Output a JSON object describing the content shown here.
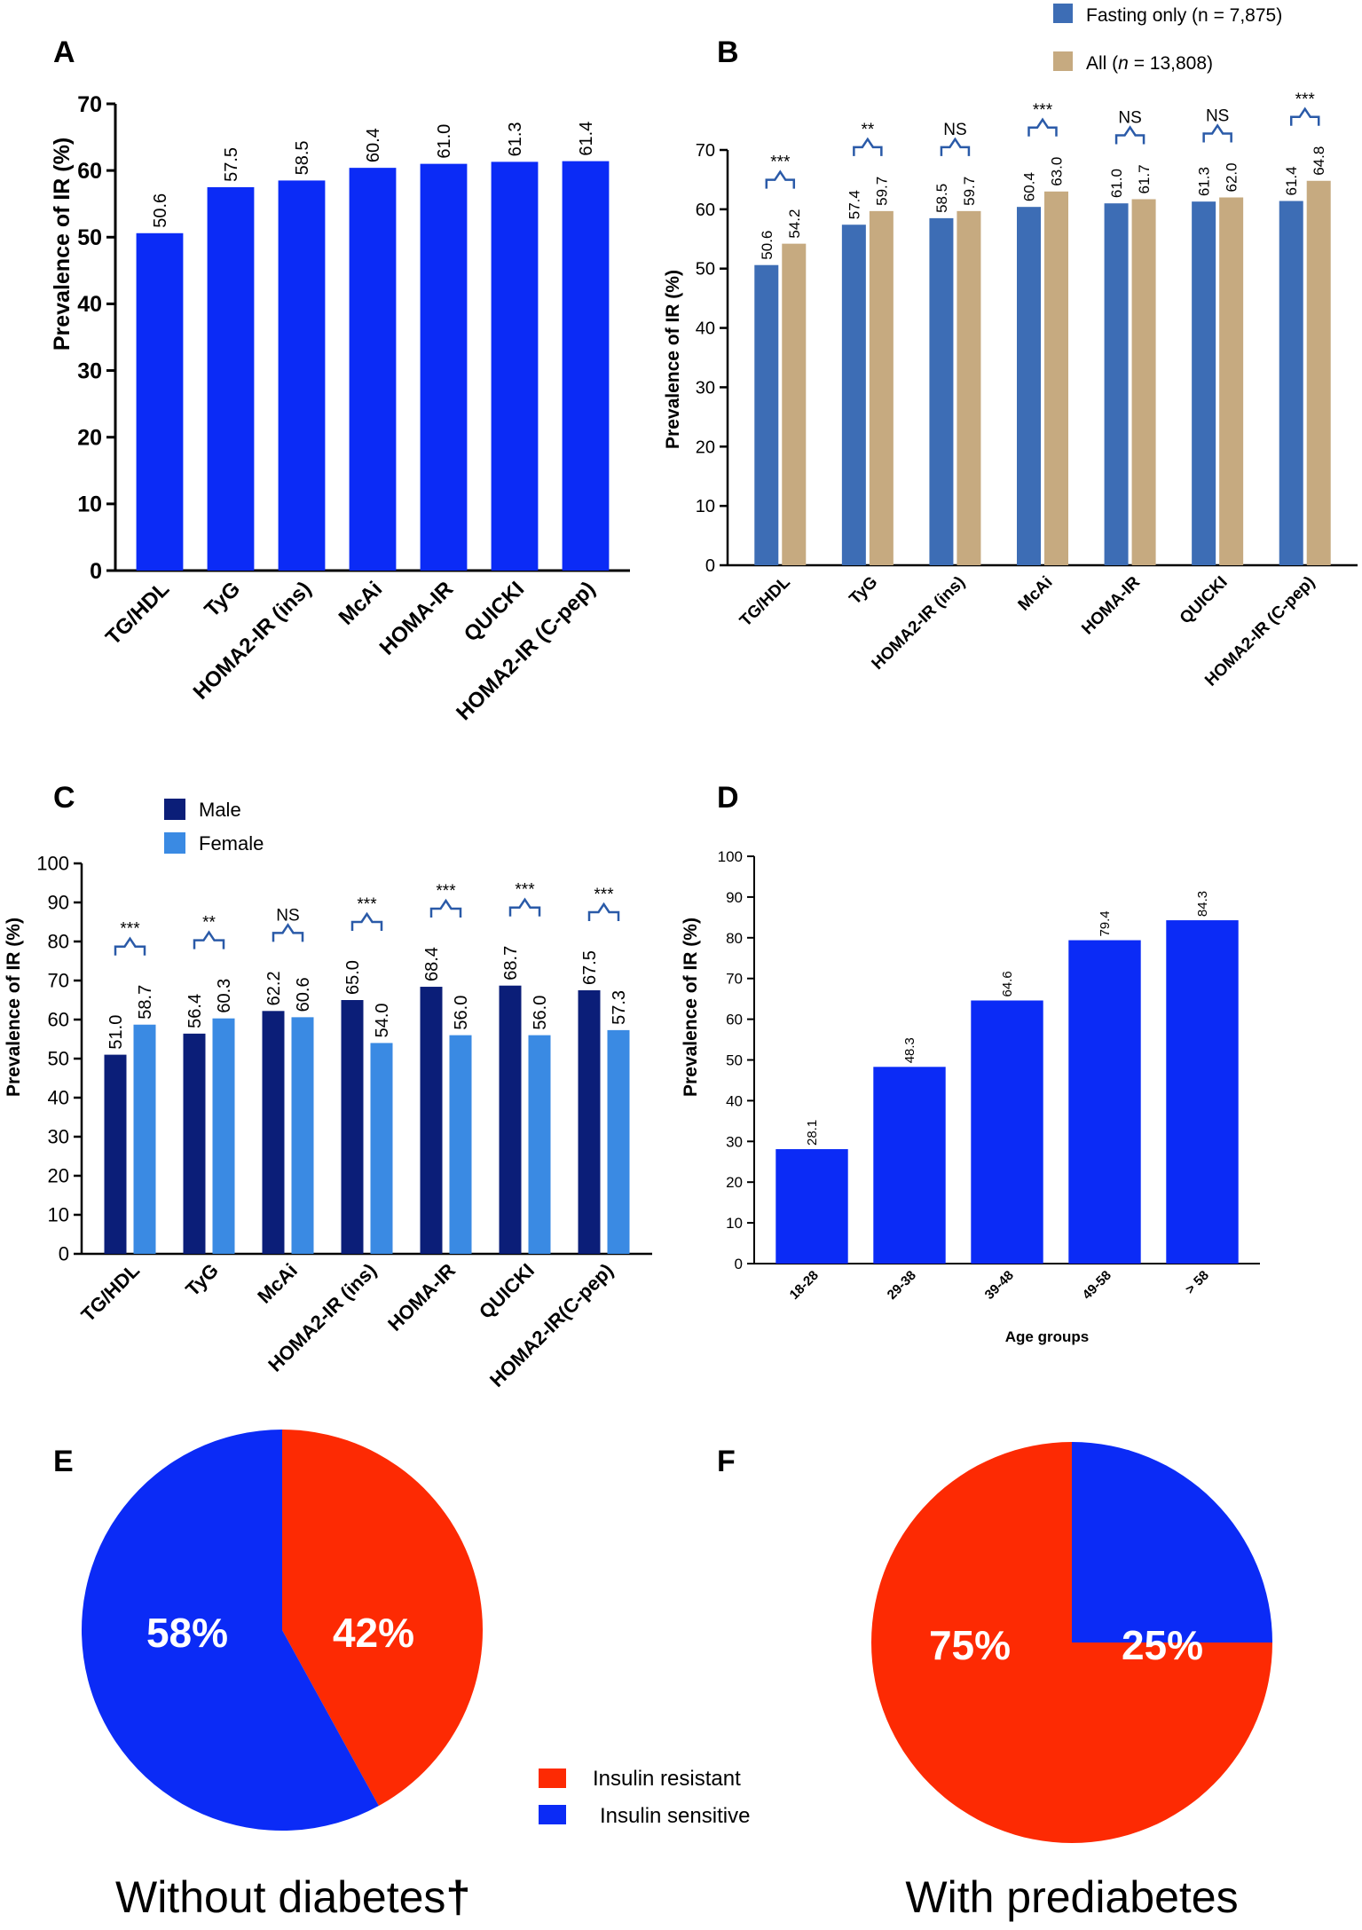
{
  "colors": {
    "blue": "#0b2bf6",
    "steel": "#3d6db5",
    "tan": "#c6aa80",
    "navy": "#0b1e78",
    "lightblue": "#3a8ae3",
    "red": "#fd2a03",
    "bracket": "#2a5aa8"
  },
  "chart_data": [
    {
      "id": "A",
      "panel_label": "A",
      "type": "bar",
      "ylabel": "Prevalence of IR  (%)",
      "ylim": [
        0,
        70
      ],
      "yticks": [
        0,
        10,
        20,
        30,
        40,
        50,
        60,
        70
      ],
      "categories": [
        "TG/HDL",
        "TyG",
        "HOMA2-IR (ins)",
        "McAi",
        "HOMA-IR",
        "QUICKI",
        "HOMA2-IR (C-pep)"
      ],
      "values": [
        50.6,
        57.5,
        58.5,
        60.4,
        61.0,
        61.3,
        61.4
      ],
      "value_labels": [
        "50.6",
        "57.5",
        "58.5",
        "60.4",
        "61.0",
        "61.3",
        "61.4"
      ]
    },
    {
      "id": "B",
      "panel_label": "B",
      "type": "bar",
      "ylabel": "Prevalence of IR (%)",
      "ylim": [
        0,
        70
      ],
      "yticks": [
        0,
        10,
        20,
        30,
        40,
        50,
        60,
        70
      ],
      "categories": [
        "TG/HDL",
        "TyG",
        "HOMA2-IR (ins)",
        "McAi",
        "HOMA-IR",
        "QUICKI",
        "HOMA2-IR (C-pep)"
      ],
      "legend": [
        "Fasting only (n = 7,875)",
        "All"
      ],
      "legend_all_parts": [
        "All  (",
        "n",
        " = 13,808)"
      ],
      "series": [
        {
          "name": "Fasting only (n = 7,875)",
          "values": [
            50.6,
            57.4,
            58.5,
            60.4,
            61.0,
            61.3,
            61.4
          ],
          "labels": [
            "50.6",
            "57.4",
            "58.5",
            "60.4",
            "61.0",
            "61.3",
            "61.4"
          ]
        },
        {
          "name": "All (n = 13,808)",
          "values": [
            54.2,
            59.7,
            59.7,
            63.0,
            61.7,
            62.0,
            64.8
          ],
          "labels": [
            "54.2",
            "59.7",
            "59.7",
            "63.0",
            "61.7",
            "62.0",
            "64.8"
          ]
        }
      ],
      "significance": [
        "***",
        "**",
        "NS",
        "***",
        "NS",
        "NS",
        "***"
      ]
    },
    {
      "id": "C",
      "panel_label": "C",
      "type": "bar",
      "ylabel": "Prevalence of IR (%)",
      "ylim": [
        0,
        100
      ],
      "yticks": [
        0,
        10,
        20,
        30,
        40,
        50,
        60,
        70,
        80,
        90,
        100
      ],
      "categories": [
        "TG/HDL",
        "TyG",
        "McAi",
        "HOMA2-IR (ins)",
        "HOMA-IR",
        "QUICKI",
        "HOMA2-IR(C-pep)"
      ],
      "legend": [
        "Male",
        "Female"
      ],
      "series": [
        {
          "name": "Male",
          "values": [
            51.0,
            56.4,
            62.2,
            65.0,
            68.4,
            68.7,
            67.5
          ],
          "labels": [
            "51.0",
            "56.4",
            "62.2",
            "65.0",
            "68.4",
            "68.7",
            "67.5"
          ]
        },
        {
          "name": "Female",
          "values": [
            58.7,
            60.3,
            60.6,
            54.0,
            56.0,
            56.0,
            57.3
          ],
          "labels": [
            "58.7",
            "60.3",
            "60.6",
            "54.0",
            "56.0",
            "56.0",
            "57.3"
          ]
        }
      ],
      "significance": [
        "***",
        "**",
        "NS",
        "***",
        "***",
        "***",
        "***"
      ]
    },
    {
      "id": "D",
      "panel_label": "D",
      "type": "bar",
      "xlabel": "Age groups",
      "ylabel": "Prevalence of IR (%)",
      "ylim": [
        0,
        100
      ],
      "yticks": [
        0,
        10,
        20,
        30,
        40,
        50,
        60,
        70,
        80,
        90,
        100
      ],
      "categories": [
        "18-28",
        "29-38",
        "39-48",
        "49-58",
        "> 58"
      ],
      "values": [
        28.1,
        48.3,
        64.6,
        79.4,
        84.3
      ],
      "value_labels": [
        "28.1",
        "48.3",
        "64.6",
        "79.4",
        "84.3"
      ]
    },
    {
      "id": "E",
      "panel_label": "E",
      "type": "pie",
      "title": "Without diabetes",
      "title_mark": "†",
      "slices": [
        {
          "name": "Insulin resistant",
          "value": 42,
          "label": "42%"
        },
        {
          "name": "Insulin sensitive",
          "value": 58,
          "label": "58%"
        }
      ]
    },
    {
      "id": "F",
      "panel_label": "F",
      "type": "pie",
      "title": "With prediabetes",
      "slices": [
        {
          "name": "Insulin resistant",
          "value": 75,
          "label": "75%"
        },
        {
          "name": "Insulin sensitive",
          "value": 25,
          "label": "25%"
        }
      ]
    }
  ],
  "pie_legend": [
    "Insulin resistant",
    "Insulin sensitive"
  ]
}
